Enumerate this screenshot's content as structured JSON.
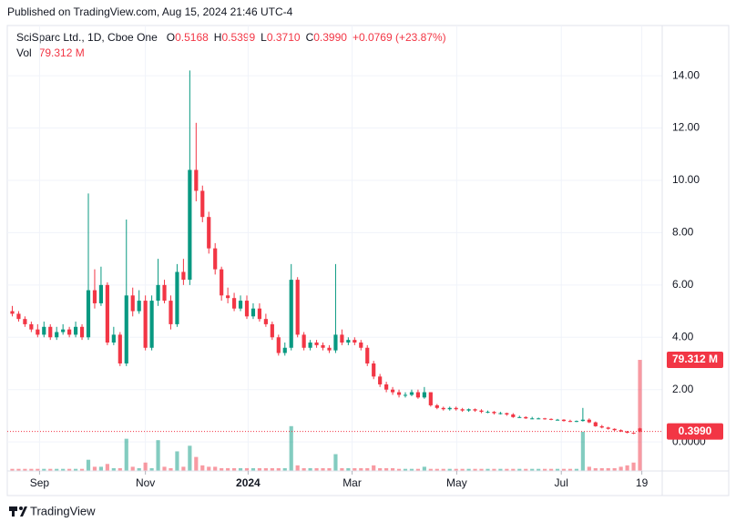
{
  "header": {
    "published": "Published on TradingView.com, Aug 15, 2024 21:46 UTC-4",
    "brand": "TradingView"
  },
  "legend": {
    "symbol": "SciSparc Ltd., 1D, Cboe One",
    "items": [
      {
        "key": "O",
        "value": "0.5168"
      },
      {
        "key": "H",
        "value": "0.5399"
      },
      {
        "key": "L",
        "value": "0.3710"
      },
      {
        "key": "C",
        "value": "0.3990"
      }
    ],
    "change": "+0.0769 (+23.87%)",
    "vol_key": "Vol",
    "vol_value": "79.312 M"
  },
  "chart_data": {
    "type": "candlestick",
    "open": [
      5.0,
      4.9,
      4.7,
      4.5,
      4.3,
      4.1,
      4.4,
      4.0,
      4.2,
      4.3,
      4.1,
      4.4,
      4.0,
      5.8,
      5.3,
      6.0,
      3.8,
      4.1,
      3.0,
      5.6,
      5.0,
      5.4,
      3.6,
      5.4,
      6.0,
      5.4,
      4.5,
      6.5,
      6.2,
      10.4,
      9.6,
      8.6,
      7.4,
      6.6,
      5.6,
      5.5,
      5.1,
      5.4,
      4.8,
      5.1,
      4.7,
      4.5,
      4.0,
      3.4,
      3.6,
      6.2,
      4.1,
      3.6,
      3.8,
      3.7,
      3.6,
      3.5,
      4.1,
      3.8,
      3.9,
      3.8,
      3.6,
      3.0,
      2.5,
      2.2,
      2.0,
      1.9,
      1.8,
      1.8,
      1.9,
      1.7,
      1.9,
      1.4,
      1.3,
      1.25,
      1.3,
      1.25,
      1.2,
      1.25,
      1.2,
      1.15,
      1.15,
      1.1,
      1.1,
      1.05,
      0.95,
      0.95,
      0.9,
      0.9,
      0.9,
      0.88,
      0.85,
      0.85,
      0.8,
      0.78,
      0.8,
      0.85,
      0.75,
      0.6,
      0.55,
      0.5,
      0.45,
      0.4,
      0.35,
      0.5168
    ],
    "high": [
      5.2,
      5.0,
      4.8,
      4.6,
      4.5,
      4.6,
      4.5,
      4.4,
      4.5,
      4.4,
      4.6,
      4.5,
      9.5,
      6.6,
      6.7,
      6.1,
      4.4,
      4.2,
      8.5,
      5.9,
      5.8,
      5.6,
      5.6,
      7.0,
      6.2,
      5.6,
      6.8,
      7.0,
      14.2,
      12.2,
      9.8,
      8.8,
      7.6,
      6.7,
      5.9,
      5.7,
      5.6,
      5.6,
      5.3,
      5.3,
      4.9,
      4.6,
      4.1,
      3.8,
      6.8,
      6.3,
      4.2,
      3.9,
      3.9,
      3.8,
      3.7,
      6.8,
      4.3,
      4.0,
      4.0,
      3.9,
      3.7,
      3.1,
      2.6,
      2.3,
      2.1,
      2.0,
      1.9,
      2.0,
      2.0,
      2.1,
      1.9,
      1.45,
      1.35,
      1.35,
      1.35,
      1.3,
      1.28,
      1.28,
      1.25,
      1.2,
      1.18,
      1.15,
      1.12,
      1.1,
      1.0,
      0.98,
      0.96,
      0.93,
      0.92,
      0.9,
      0.88,
      0.87,
      0.85,
      0.82,
      1.3,
      0.9,
      0.78,
      0.65,
      0.58,
      0.52,
      0.48,
      0.42,
      0.37,
      0.5399
    ],
    "low": [
      4.8,
      4.6,
      4.4,
      4.2,
      4.0,
      4.0,
      3.9,
      3.9,
      4.1,
      4.0,
      4.0,
      3.9,
      3.9,
      5.1,
      5.2,
      3.7,
      3.7,
      2.9,
      2.9,
      4.8,
      4.9,
      3.5,
      3.5,
      5.2,
      5.3,
      4.3,
      4.4,
      6.0,
      6.0,
      9.2,
      8.4,
      7.2,
      6.4,
      5.4,
      5.3,
      5.0,
      5.0,
      4.7,
      4.7,
      4.6,
      4.4,
      3.9,
      3.3,
      3.3,
      3.5,
      4.0,
      3.5,
      3.5,
      3.6,
      3.5,
      3.4,
      3.4,
      3.7,
      3.7,
      3.7,
      3.5,
      2.9,
      2.4,
      2.1,
      1.9,
      1.8,
      1.7,
      1.7,
      1.75,
      1.65,
      1.65,
      1.35,
      1.25,
      1.2,
      1.2,
      1.2,
      1.15,
      1.15,
      1.15,
      1.1,
      1.1,
      1.05,
      1.05,
      1.0,
      0.92,
      0.92,
      0.88,
      0.87,
      0.87,
      0.85,
      0.83,
      0.82,
      0.78,
      0.76,
      0.76,
      0.78,
      0.72,
      0.58,
      0.52,
      0.47,
      0.42,
      0.38,
      0.33,
      0.3,
      0.371
    ],
    "close": [
      4.9,
      4.7,
      4.5,
      4.3,
      4.1,
      4.4,
      4.0,
      4.2,
      4.3,
      4.1,
      4.4,
      4.0,
      5.8,
      5.3,
      6.0,
      3.8,
      4.1,
      3.0,
      5.6,
      5.0,
      5.4,
      3.6,
      5.4,
      6.0,
      5.4,
      4.5,
      6.5,
      6.2,
      10.4,
      9.6,
      8.6,
      7.4,
      6.6,
      5.6,
      5.5,
      5.1,
      5.4,
      4.8,
      5.1,
      4.7,
      4.5,
      4.0,
      3.4,
      3.6,
      6.2,
      4.1,
      3.6,
      3.8,
      3.7,
      3.6,
      3.5,
      4.1,
      3.8,
      3.9,
      3.8,
      3.6,
      3.0,
      2.5,
      2.2,
      2.0,
      1.9,
      1.8,
      1.8,
      1.9,
      1.7,
      1.9,
      1.4,
      1.3,
      1.25,
      1.3,
      1.25,
      1.2,
      1.25,
      1.2,
      1.15,
      1.15,
      1.1,
      1.1,
      1.05,
      0.95,
      0.95,
      0.9,
      0.9,
      0.9,
      0.88,
      0.85,
      0.85,
      0.8,
      0.78,
      0.8,
      0.85,
      0.75,
      0.6,
      0.55,
      0.5,
      0.45,
      0.4,
      0.35,
      0.3221,
      0.399
    ],
    "volume": [
      1.5,
      1.5,
      1.5,
      1.5,
      1.5,
      1.5,
      1.5,
      1.5,
      1.5,
      1.5,
      1.5,
      1.5,
      8,
      3,
      3,
      5,
      2,
      2,
      23,
      3,
      2,
      6,
      2,
      22,
      3,
      2,
      14,
      3,
      18,
      10,
      4,
      3,
      3,
      2,
      2,
      2,
      2,
      2,
      2,
      2,
      2,
      2,
      2,
      2,
      32,
      4,
      2,
      2,
      2,
      2,
      2,
      12,
      2,
      2,
      2,
      2,
      2,
      4,
      2,
      2,
      2,
      1.5,
      1.5,
      1.5,
      1.5,
      3,
      1.5,
      1.5,
      1.5,
      1.5,
      1.5,
      1.5,
      1.5,
      1.5,
      1.5,
      1.5,
      1.5,
      1.5,
      1.5,
      1.5,
      1.5,
      1.5,
      1.5,
      1.5,
      1.5,
      1.5,
      1.5,
      1.5,
      1.5,
      1.5,
      28,
      3,
      2,
      2,
      2,
      2,
      3,
      4,
      6,
      79.312
    ],
    "xlim": [
      0,
      100
    ],
    "xticks": [
      {
        "value": 4.8,
        "label": "Sep"
      },
      {
        "value": 21.5,
        "label": "Nov"
      },
      {
        "value": 37.7,
        "label": "2024"
      },
      {
        "value": 54.1,
        "label": "Mar"
      },
      {
        "value": 70.6,
        "label": "May"
      },
      {
        "value": 87.1,
        "label": "Jul"
      },
      {
        "value": 99.8,
        "label": "19"
      }
    ],
    "ylim": [
      -1.11,
      15.92
    ],
    "yticks": [
      {
        "value": 0,
        "label": "0.0000"
      },
      {
        "value": 2,
        "label": "2.00"
      },
      {
        "value": 4,
        "label": "4.00"
      },
      {
        "value": 6,
        "label": "6.00"
      },
      {
        "value": 8,
        "label": "8.00"
      },
      {
        "value": 10,
        "label": "10.00"
      },
      {
        "value": 12,
        "label": "12.00"
      },
      {
        "value": 14,
        "label": "14.00"
      }
    ],
    "vlim": [
      0,
      318
    ],
    "up_color": "#089981",
    "down_color": "#f23645",
    "grid": true
  }
}
